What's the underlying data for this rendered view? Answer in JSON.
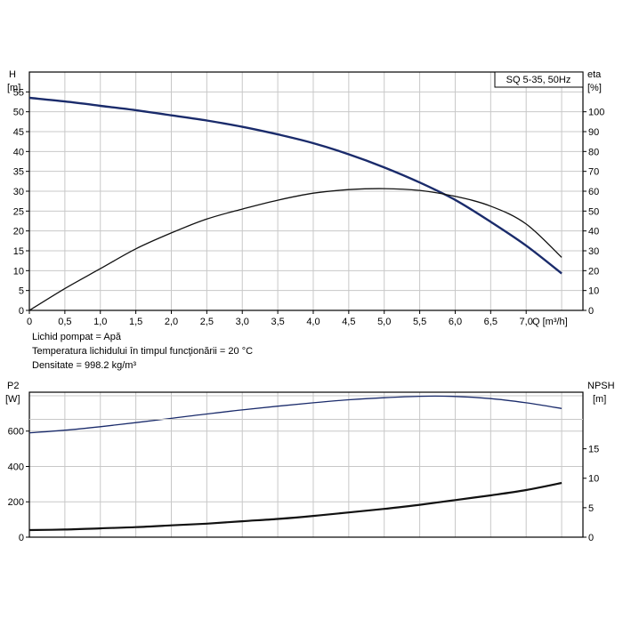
{
  "notes": {
    "line1": "Lichid pompat = Apă",
    "line2": "Temperatura lichidului în timpul funcţionării = 20 °C",
    "line3": "Densitate = 998.2 kg/m³"
  },
  "chart_data": [
    {
      "type": "line",
      "title": "SQ 5-35, 50Hz",
      "xlabel": "Q [m³/h]",
      "ylabel_left": "H\n[m]",
      "ylabel_right": "eta\n[%]",
      "xlim": [
        0,
        7.8
      ],
      "ylim_left": [
        0,
        60
      ],
      "ylim_right": [
        0,
        120
      ],
      "x_ticks": [
        "0",
        "0,5",
        "1,0",
        "1,5",
        "2,0",
        "2,5",
        "3,0",
        "3,5",
        "4,0",
        "4,5",
        "5,0",
        "5,5",
        "6,0",
        "6,5",
        "7,0"
      ],
      "y_ticks_left": [
        "0",
        "5",
        "10",
        "15",
        "20",
        "25",
        "30",
        "35",
        "40",
        "45",
        "50",
        "55"
      ],
      "y_ticks_right": [
        "0",
        "10",
        "20",
        "30",
        "40",
        "50",
        "60",
        "70",
        "80",
        "90",
        "100"
      ],
      "grid": true,
      "series": [
        {
          "axis": "left",
          "color": "#1a2b6b",
          "x": [
            0,
            0.5,
            1.0,
            1.5,
            2.0,
            2.5,
            3.0,
            3.5,
            4.0,
            4.5,
            5.0,
            5.5,
            6.0,
            6.5,
            7.0,
            7.5
          ],
          "values": [
            53.5,
            52.6,
            51.5,
            50.4,
            49.1,
            47.8,
            46.2,
            44.3,
            42.1,
            39.3,
            36.0,
            32.2,
            27.8,
            22.3,
            16.3,
            9.3
          ]
        },
        {
          "axis": "right",
          "color": "#111111",
          "x": [
            0,
            0.5,
            1.0,
            1.5,
            2.0,
            2.5,
            3.0,
            3.5,
            4.0,
            4.5,
            5.0,
            5.5,
            6.0,
            6.5,
            7.0,
            7.5
          ],
          "values": [
            0,
            11,
            21,
            31,
            39,
            46,
            51,
            55.5,
            59,
            60.8,
            61.3,
            60.4,
            57.4,
            52.5,
            43.5,
            26.7
          ]
        }
      ]
    },
    {
      "type": "line",
      "xlim": [
        0,
        7.8
      ],
      "ylabel_left": "P2\n[W]",
      "ylabel_right": "NPSH\n[m]",
      "ylim_left": [
        0,
        820
      ],
      "ylim_right": [
        0,
        24.6
      ],
      "y_ticks_left": [
        "0",
        "200",
        "400",
        "600"
      ],
      "y_ticks_right": [
        "0",
        "5",
        "10",
        "15"
      ],
      "grid": true,
      "series": [
        {
          "axis": "left",
          "color": "#1a2b6b",
          "x": [
            0,
            0.5,
            1.0,
            1.5,
            2.0,
            2.5,
            3.0,
            3.5,
            4.0,
            4.5,
            5.0,
            5.5,
            6.0,
            6.5,
            7.0,
            7.5
          ],
          "values": [
            590,
            605,
            625,
            648,
            672,
            697,
            720,
            741,
            760,
            777,
            789,
            797,
            796,
            784,
            760,
            728
          ]
        },
        {
          "axis": "right",
          "color": "#111111",
          "x": [
            0,
            0.5,
            1.0,
            1.5,
            2.0,
            2.5,
            3.0,
            3.5,
            4.0,
            4.5,
            5.0,
            5.5,
            6.0,
            6.5,
            7.0,
            7.5
          ],
          "values": [
            1.2,
            1.3,
            1.5,
            1.7,
            2.0,
            2.3,
            2.7,
            3.1,
            3.6,
            4.2,
            4.8,
            5.5,
            6.3,
            7.1,
            8.0,
            9.2
          ]
        }
      ]
    }
  ]
}
